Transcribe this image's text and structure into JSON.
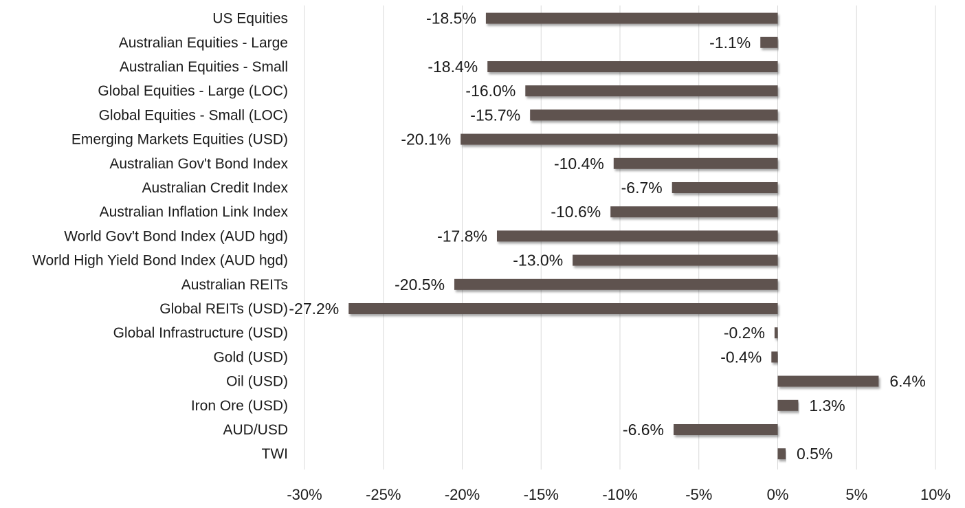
{
  "chart_data": {
    "type": "bar",
    "orientation": "horizontal",
    "categories": [
      "US Equities",
      "Australian Equities - Large",
      "Australian Equities - Small",
      "Global Equities - Large (LOC)",
      "Global Equities - Small (LOC)",
      "Emerging Markets Equities (USD)",
      "Australian Gov't Bond Index",
      "Australian Credit Index",
      "Australian Inflation Link Index",
      "World Gov't Bond Index (AUD hgd)",
      "World High Yield Bond Index (AUD hgd)",
      "Australian REITs",
      "Global REITs (USD)",
      "Global Infrastructure (USD)",
      "Gold (USD)",
      "Oil (USD)",
      "Iron Ore (USD)",
      "AUD/USD",
      "TWI"
    ],
    "values": [
      -18.5,
      -1.1,
      -18.4,
      -16.0,
      -15.7,
      -20.1,
      -10.4,
      -6.7,
      -10.6,
      -17.8,
      -13.0,
      -20.5,
      -27.2,
      -0.2,
      -0.4,
      6.4,
      1.3,
      -6.6,
      0.5
    ],
    "value_labels": [
      "-18.5%",
      "-1.1%",
      "-18.4%",
      "-16.0%",
      "-15.7%",
      "-20.1%",
      "-10.4%",
      "-6.7%",
      "-10.6%",
      "-17.8%",
      "-13.0%",
      "-20.5%",
      "-27.2%",
      "-0.2%",
      "-0.4%",
      "6.4%",
      "1.3%",
      "-6.6%",
      "0.5%"
    ],
    "xlim": [
      -30,
      10
    ],
    "xticks": [
      -30,
      -25,
      -20,
      -15,
      -10,
      -5,
      0,
      5,
      10
    ],
    "xtick_labels": [
      "-30%",
      "-25%",
      "-20%",
      "-15%",
      "-10%",
      "-5%",
      "0%",
      "5%",
      "10%"
    ],
    "title": "",
    "xlabel": "",
    "ylabel": "",
    "grid": "vertical",
    "legend": "none",
    "bar_color": "#5e5250"
  }
}
